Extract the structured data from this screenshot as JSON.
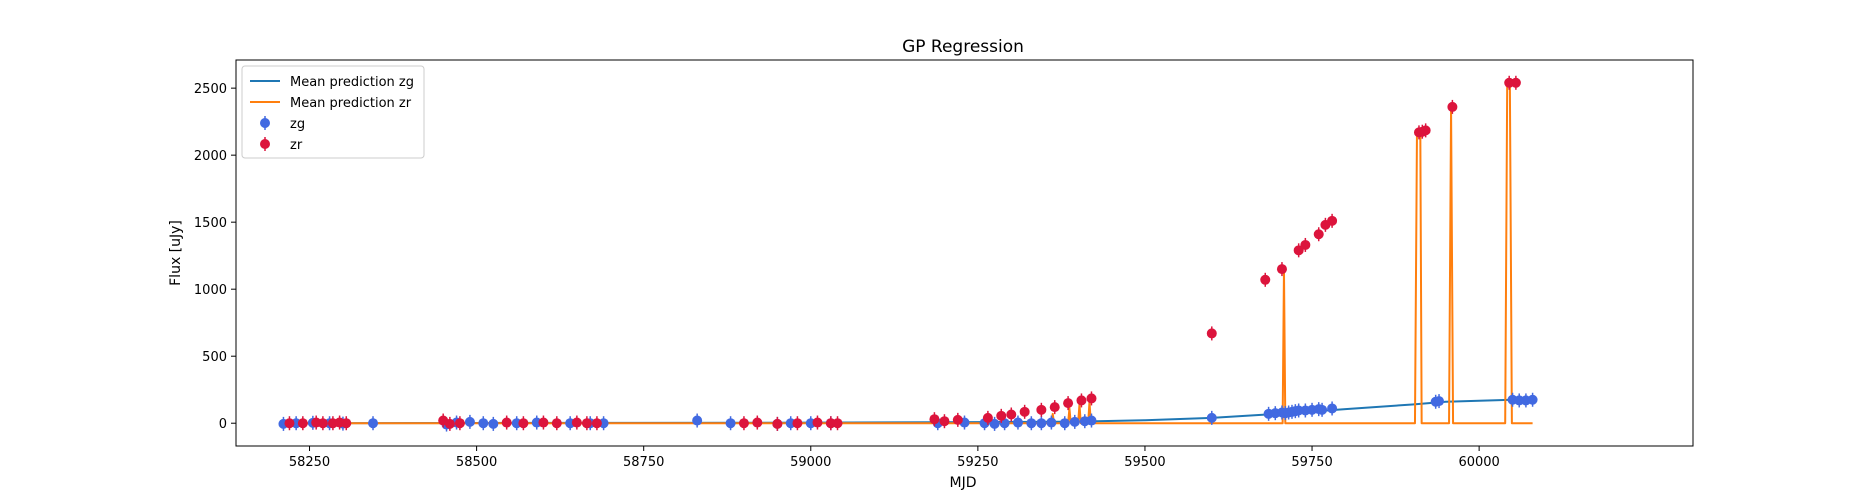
{
  "chart_data": {
    "type": "scatter",
    "title": "GP Regression",
    "xlabel": "MJD",
    "ylabel": "Flux [uJy]",
    "xlim": [
      58140,
      60320
    ],
    "ylim": [
      -170,
      2710
    ],
    "xticks": [
      58250,
      58500,
      58750,
      59000,
      59250,
      59500,
      59750,
      60000
    ],
    "yticks": [
      0,
      500,
      1000,
      1500,
      2000,
      2500
    ],
    "legend_position": "top-left",
    "legend": [
      {
        "label": "Mean prediction zg",
        "kind": "line",
        "color": "#1f77b4"
      },
      {
        "label": "Mean prediction zr",
        "kind": "line",
        "color": "#ff7f0e"
      },
      {
        "label": "zg",
        "kind": "marker",
        "color": "#4169e1"
      },
      {
        "label": "zr",
        "kind": "marker",
        "color": "#dc143c"
      }
    ],
    "series": [
      {
        "name": "Mean prediction zg",
        "type": "line",
        "color": "#1f77b4",
        "x": [
          58211,
          58500,
          59000,
          59250,
          59400,
          59500,
          59600,
          59700,
          59800,
          59900,
          59950,
          60050,
          60080
        ],
        "y": [
          0,
          2,
          4,
          8,
          12,
          22,
          40,
          70,
          105,
          140,
          160,
          175,
          172
        ]
      },
      {
        "name": "Mean prediction zr",
        "type": "line",
        "color": "#ff7f0e",
        "x": [
          58211,
          59360,
          59362,
          59364,
          59385,
          59387,
          59389,
          59400,
          59402,
          59404,
          59415,
          59417,
          59419,
          59706,
          59708,
          59710,
          59904,
          59907,
          59912,
          59914,
          59955,
          59958,
          59961,
          60039,
          60042,
          60046,
          60049,
          60080
        ],
        "y": [
          0,
          0,
          70,
          0,
          0,
          110,
          0,
          0,
          140,
          0,
          0,
          160,
          0,
          0,
          1140,
          0,
          0,
          2170,
          2180,
          0,
          0,
          2350,
          0,
          0,
          2530,
          2530,
          0,
          0
        ]
      },
      {
        "name": "zg",
        "type": "scatter",
        "color": "#4169e1",
        "x": [
          58211,
          58230,
          58255,
          58280,
          58300,
          58345,
          58455,
          58470,
          58490,
          58510,
          58525,
          58560,
          58590,
          58640,
          58670,
          58690,
          58830,
          58880,
          58950,
          58970,
          59000,
          59030,
          59190,
          59230,
          59260,
          59275,
          59290,
          59310,
          59330,
          59345,
          59360,
          59380,
          59395,
          59410,
          59420,
          59600,
          59685,
          59695,
          59705,
          59710,
          59715,
          59720,
          59725,
          59730,
          59740,
          59750,
          59760,
          59765,
          59780,
          59935,
          59940,
          60050,
          60060,
          60070,
          60080
        ],
        "y": [
          -5,
          0,
          3,
          0,
          -3,
          0,
          -10,
          5,
          10,
          0,
          -5,
          0,
          5,
          0,
          0,
          0,
          20,
          0,
          -5,
          0,
          0,
          0,
          0,
          5,
          0,
          -5,
          0,
          5,
          0,
          0,
          5,
          0,
          10,
          15,
          20,
          40,
          70,
          75,
          80,
          75,
          80,
          85,
          90,
          95,
          95,
          100,
          105,
          100,
          110,
          160,
          165,
          175,
          170,
          170,
          175
        ]
      },
      {
        "name": "zr",
        "type": "scatter",
        "color": "#dc143c",
        "x": [
          58220,
          58240,
          58260,
          58270,
          58285,
          58295,
          58305,
          58450,
          58460,
          58475,
          58545,
          58570,
          58600,
          58620,
          58650,
          58665,
          58680,
          58900,
          58920,
          58950,
          58980,
          59010,
          59030,
          59040,
          59185,
          59200,
          59220,
          59265,
          59285,
          59300,
          59320,
          59345,
          59365,
          59385,
          59405,
          59420,
          59600,
          59680,
          59705,
          59730,
          59740,
          59760,
          59770,
          59780,
          59910,
          59915,
          59920,
          59960,
          60045,
          60055
        ],
        "y": [
          0,
          0,
          5,
          0,
          0,
          5,
          0,
          20,
          -5,
          0,
          5,
          0,
          5,
          0,
          5,
          0,
          0,
          0,
          5,
          -5,
          0,
          5,
          0,
          0,
          30,
          15,
          25,
          40,
          55,
          65,
          85,
          100,
          120,
          150,
          170,
          185,
          670,
          1070,
          1150,
          1290,
          1330,
          1410,
          1480,
          1510,
          2170,
          2175,
          2185,
          2360,
          2540,
          2540
        ]
      }
    ]
  }
}
